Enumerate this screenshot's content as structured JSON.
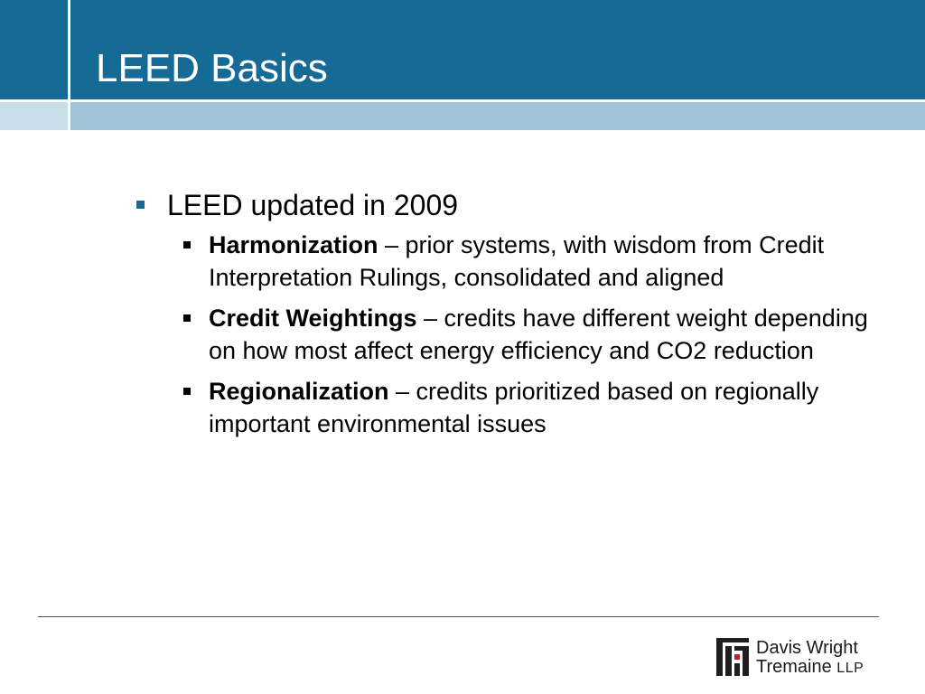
{
  "slide": {
    "title": "LEED Basics",
    "main_bullet": "LEED updated in 2009",
    "sub_bullets": [
      {
        "term": "Harmonization",
        "text": " – prior systems, with wisdom from Credit Interpretation Rulings, consolidated and aligned"
      },
      {
        "term": "Credit Weightings",
        "text": " – credits have different weight depending on how most affect energy efficiency and CO2 reduction"
      },
      {
        "term": "Regionalization",
        "text": " – credits prioritized based on regionally important environmental issues"
      }
    ]
  },
  "footer": {
    "logo_line1": "Davis Wright",
    "logo_line2": "Tremaine",
    "logo_suffix": "LLP"
  },
  "colors": {
    "header": "#156a96",
    "band": "#9fc3d8",
    "band_left": "#c9dee9",
    "bullet_marker": "#156a96"
  }
}
